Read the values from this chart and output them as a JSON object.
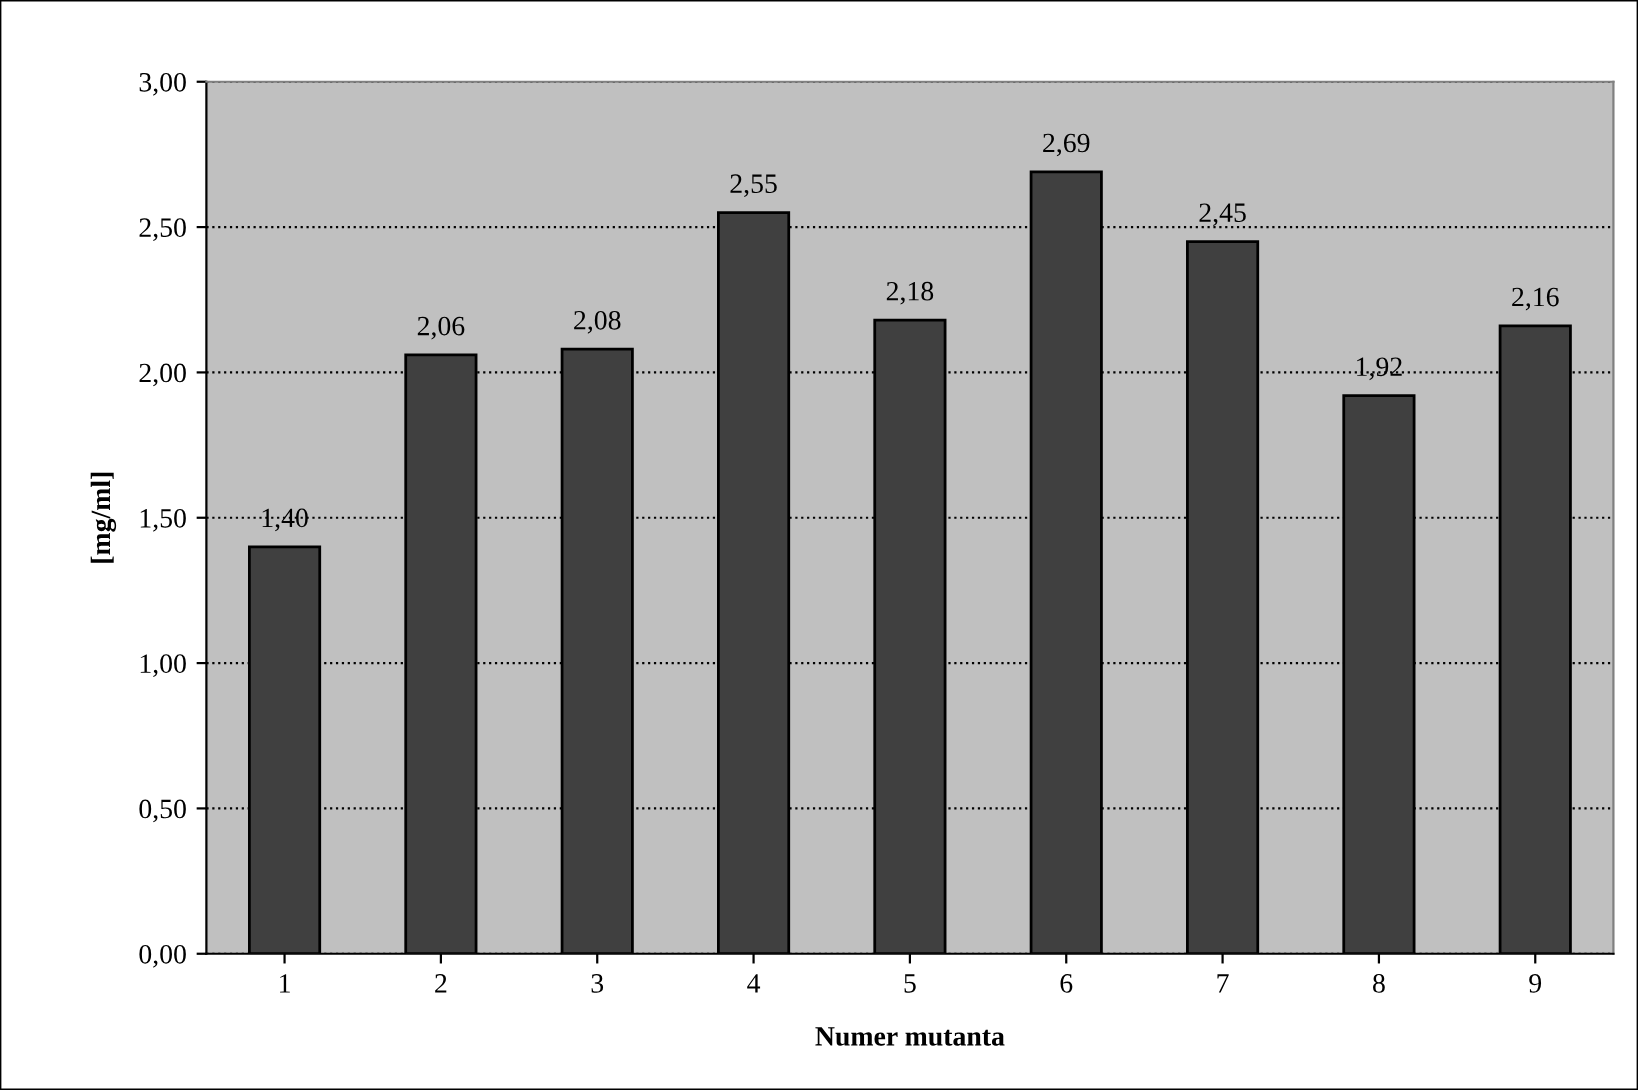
{
  "chart_data": {
    "type": "bar",
    "xlabel": "Numer mutanta",
    "ylabel": "[mg/ml]",
    "categories": [
      "1",
      "2",
      "3",
      "4",
      "5",
      "6",
      "7",
      "8",
      "9"
    ],
    "values": [
      1.4,
      2.06,
      2.08,
      2.55,
      2.18,
      2.69,
      2.45,
      1.92,
      2.16
    ],
    "value_labels": [
      "1,40",
      "2,06",
      "2,08",
      "2,55",
      "2,18",
      "2,69",
      "2,45",
      "1,92",
      "2,16"
    ],
    "color": "#404040",
    "ylim": [
      0,
      3
    ],
    "yticks": [
      {
        "value": 0,
        "label": "0,00"
      },
      {
        "value": 0.5,
        "label": "0,50"
      },
      {
        "value": 1,
        "label": "1,00"
      },
      {
        "value": 1.5,
        "label": "1,50"
      },
      {
        "value": 2,
        "label": "2,00"
      },
      {
        "value": 2.5,
        "label": "2,50"
      },
      {
        "value": 3,
        "label": "3,00"
      }
    ],
    "grid": "y",
    "line_style": "dotted"
  }
}
